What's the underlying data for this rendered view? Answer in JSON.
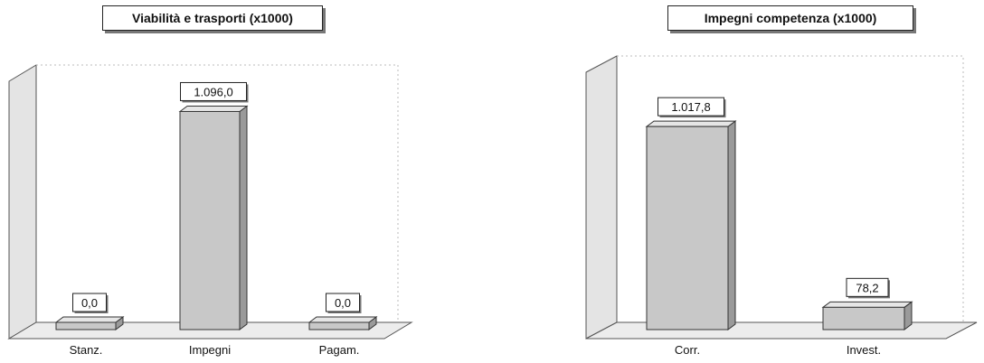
{
  "chart_data": [
    {
      "type": "bar",
      "title": "Viabilità e trasporti (x1000)",
      "categories": [
        "Stanz.",
        "Impegni",
        "Pagam."
      ],
      "values": [
        0.0,
        1096.0,
        0.0
      ],
      "value_labels": [
        "0,0",
        "1.096,0",
        "0,0"
      ],
      "ylim": [
        0,
        1300
      ],
      "bar_color": "#c8c8c8",
      "grid": false
    },
    {
      "type": "bar",
      "title": "Impegni competenza (x1000)",
      "categories": [
        "Corr.",
        "Invest."
      ],
      "values": [
        1017.8,
        78.2
      ],
      "value_labels": [
        "1.017,8",
        "78,2"
      ],
      "ylim": [
        0,
        1300
      ],
      "bar_color": "#c8c8c8",
      "grid": false
    }
  ]
}
